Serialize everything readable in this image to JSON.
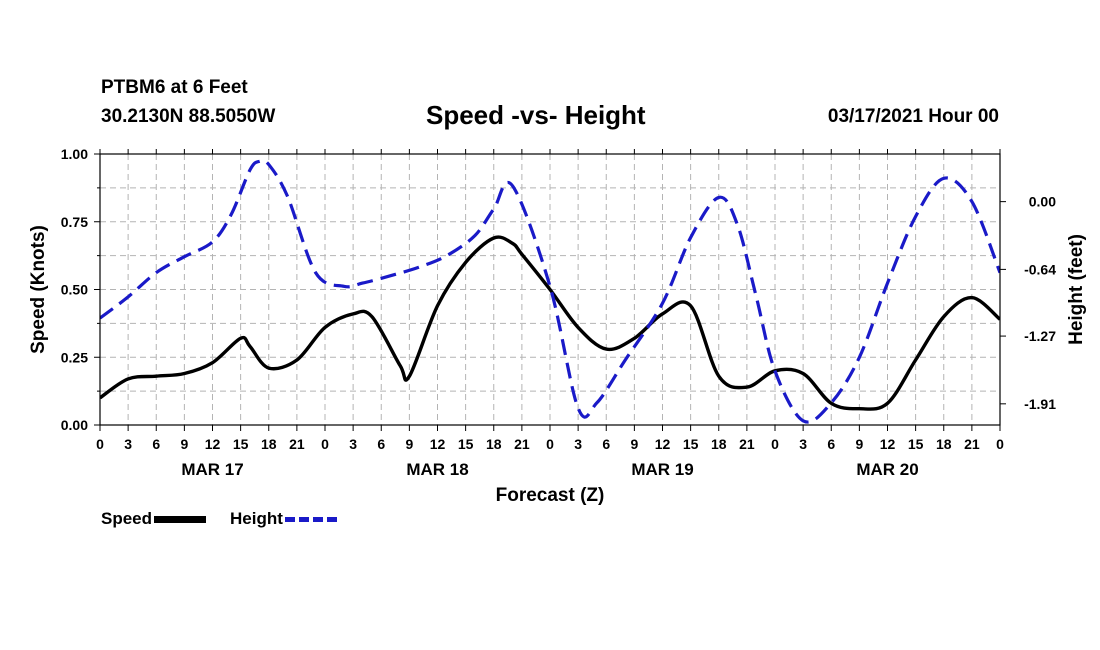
{
  "header": {
    "station": "PTBM6 at 6 Feet",
    "coords": "30.2130N 88.5050W",
    "title": "Speed -vs- Height",
    "datetime": "03/17/2021 Hour 00"
  },
  "colors": {
    "speed": "#000000",
    "height": "#1a1ac8",
    "grid": "#b4b4b4"
  },
  "chart_data": {
    "type": "line",
    "title": "Speed -vs- Height",
    "xlabel": "Forecast (Z)",
    "ylabel": "Speed (Knots)",
    "y2label": "Height (feet)",
    "xlim": [
      0,
      96
    ],
    "ylim": [
      0,
      1
    ],
    "y2lim": [
      -2.11,
      0.45
    ],
    "x_ticks": [
      0,
      3,
      6,
      9,
      12,
      15,
      18,
      21,
      24,
      27,
      30,
      33,
      36,
      39,
      42,
      45,
      48,
      51,
      54,
      57,
      60,
      63,
      66,
      69,
      72,
      75,
      78,
      81,
      84,
      87,
      90,
      93,
      96
    ],
    "x_tick_labels": [
      "0",
      "3",
      "6",
      "9",
      "12",
      "15",
      "18",
      "21",
      "0",
      "3",
      "6",
      "9",
      "12",
      "15",
      "18",
      "21",
      "0",
      "3",
      "6",
      "9",
      "12",
      "15",
      "18",
      "21",
      "0",
      "3",
      "6",
      "9",
      "12",
      "15",
      "18",
      "21",
      "0"
    ],
    "day_labels": [
      {
        "x": 12,
        "label": "MAR 17"
      },
      {
        "x": 36,
        "label": "MAR 18"
      },
      {
        "x": 60,
        "label": "MAR 19"
      },
      {
        "x": 84,
        "label": "MAR 20"
      }
    ],
    "y_ticks": [
      0,
      0.25,
      0.5,
      0.75,
      1.0
    ],
    "y_tick_labels": [
      "0.00",
      "0.25",
      "0.50",
      "0.75",
      "1.00"
    ],
    "y2_ticks": [
      -1.91,
      -1.27,
      -0.64,
      0.0
    ],
    "y2_tick_labels": [
      "-1.91",
      "-1.27",
      "-0.64",
      "0.00"
    ],
    "grid": true,
    "series": [
      {
        "name": "Speed",
        "axis": "left",
        "style": "solid",
        "x": [
          0,
          3,
          6,
          9,
          12,
          15,
          16,
          18,
          21,
          24,
          27,
          29,
          32,
          33,
          36,
          39,
          42,
          44,
          45,
          48,
          51,
          54,
          57,
          60,
          63,
          66,
          69,
          72,
          75,
          78,
          81,
          84,
          87,
          90,
          93,
          96
        ],
        "values": [
          0.1,
          0.17,
          0.18,
          0.19,
          0.23,
          0.32,
          0.29,
          0.21,
          0.24,
          0.36,
          0.41,
          0.4,
          0.22,
          0.18,
          0.44,
          0.6,
          0.69,
          0.67,
          0.63,
          0.5,
          0.36,
          0.28,
          0.32,
          0.41,
          0.44,
          0.18,
          0.14,
          0.2,
          0.19,
          0.08,
          0.06,
          0.08,
          0.24,
          0.4,
          0.47,
          0.39
        ]
      },
      {
        "name": "Height",
        "axis": "right",
        "style": "dashed",
        "x": [
          0,
          3,
          6,
          9,
          12,
          14,
          16,
          17,
          18,
          20,
          23,
          26,
          28,
          31,
          34,
          37,
          40,
          42,
          44,
          48,
          51,
          53,
          56,
          60,
          63,
          66,
          68,
          70,
          72,
          75,
          78,
          81,
          84,
          87,
          90,
          93,
          96
        ],
        "values": [
          -1.1,
          -0.9,
          -0.67,
          -0.52,
          -0.38,
          -0.12,
          0.3,
          0.38,
          0.35,
          0.05,
          -0.67,
          -0.8,
          -0.77,
          -0.7,
          -0.62,
          -0.51,
          -0.32,
          -0.07,
          0.15,
          -0.8,
          -1.95,
          -1.9,
          -1.5,
          -0.96,
          -0.34,
          0.04,
          -0.22,
          -0.9,
          -1.6,
          -2.07,
          -1.9,
          -1.47,
          -0.77,
          -0.14,
          0.22,
          0.0,
          -0.67
        ]
      }
    ],
    "legend": [
      {
        "label": "Speed",
        "series": "Speed"
      },
      {
        "label": "Height",
        "series": "Height"
      }
    ],
    "legend_position": "bottom-left"
  }
}
